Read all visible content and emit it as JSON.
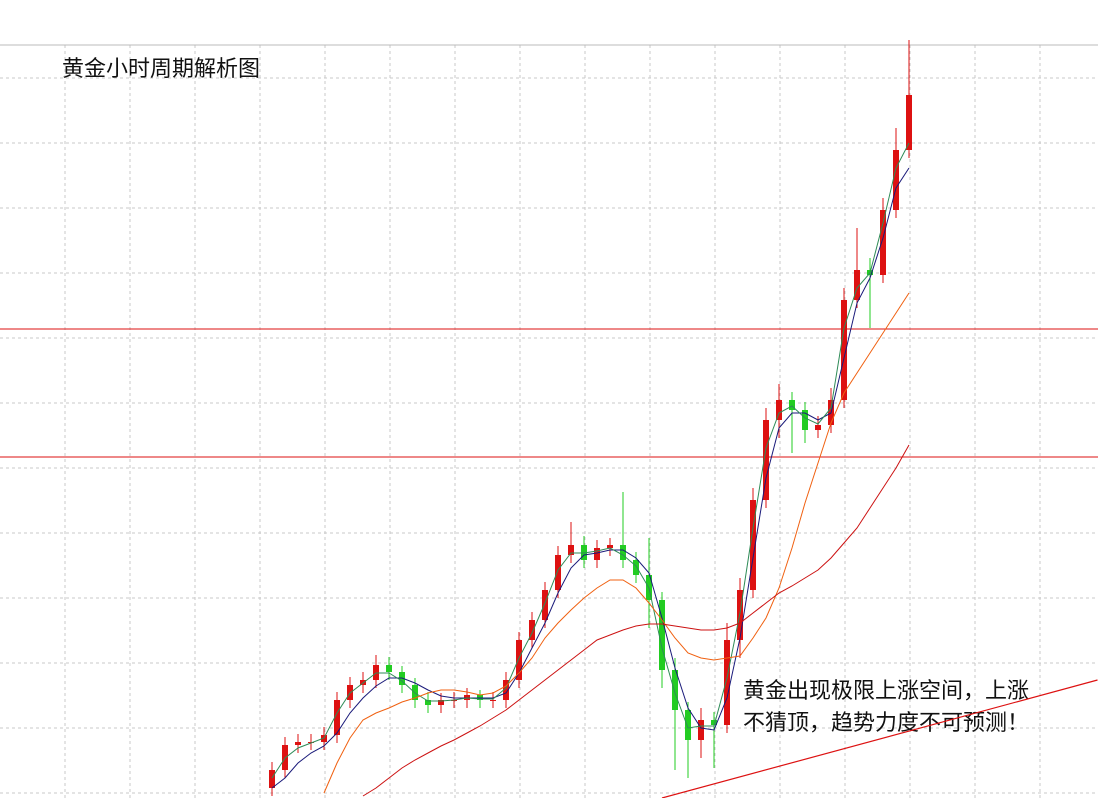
{
  "chart_data": {
    "type": "candlestick",
    "title": "黄金小时周期解析图",
    "annotation": [
      "黄金出现极限上涨空间，上涨",
      "不猜顶，趋势力度不可预测！"
    ],
    "ylim": [
      0,
      798
    ],
    "grid": true,
    "up_color": "#dd1111",
    "down_color": "#22cc22",
    "open": [
      10,
      28,
      53,
      56,
      56,
      63,
      98,
      113,
      118,
      133,
      126,
      113,
      98,
      93,
      98,
      98,
      103,
      98,
      98,
      118,
      158,
      178,
      208,
      243,
      253,
      238,
      250,
      253,
      238,
      223,
      198,
      128,
      88,
      58,
      78,
      73,
      158,
      208,
      298,
      378,
      398,
      388,
      368,
      373,
      398,
      498,
      528,
      523,
      588,
      648
    ],
    "high": [
      36,
      61,
      64,
      64,
      71,
      106,
      121,
      126,
      143,
      141,
      132,
      120,
      106,
      105,
      106,
      110,
      108,
      106,
      126,
      166,
      186,
      216,
      252,
      276,
      262,
      258,
      260,
      306,
      246,
      260,
      206,
      140,
      96,
      90,
      86,
      175,
      220,
      310,
      390,
      414,
      406,
      396,
      382,
      410,
      510,
      570,
      540,
      600,
      670,
      758
    ],
    "low": [
      2,
      20,
      45,
      48,
      48,
      55,
      90,
      105,
      110,
      118,
      105,
      90,
      85,
      85,
      90,
      90,
      90,
      90,
      90,
      110,
      150,
      170,
      200,
      235,
      230,
      230,
      242,
      230,
      215,
      170,
      110,
      28,
      20,
      40,
      30,
      65,
      140,
      200,
      290,
      360,
      345,
      355,
      360,
      365,
      390,
      490,
      470,
      515,
      580,
      640
    ],
    "close": [
      28,
      53,
      56,
      56,
      63,
      98,
      113,
      118,
      133,
      126,
      113,
      98,
      93,
      98,
      98,
      103,
      98,
      98,
      118,
      158,
      178,
      208,
      243,
      253,
      238,
      250,
      253,
      238,
      223,
      198,
      128,
      88,
      58,
      78,
      73,
      158,
      208,
      298,
      378,
      398,
      388,
      368,
      373,
      398,
      498,
      528,
      523,
      588,
      648,
      703
    ],
    "series": [
      {
        "color": "#1a1a7a",
        "values": [
          10,
          20,
          35,
          45,
          52,
          65,
          85,
          100,
          112,
          120,
          120,
          115,
          108,
          102,
          100,
          100,
          100,
          100,
          105,
          125,
          150,
          175,
          205,
          230,
          243,
          245,
          248,
          248,
          240,
          225,
          180,
          130,
          90,
          70,
          68,
          100,
          160,
          240,
          320,
          370,
          385,
          385,
          378,
          385,
          440,
          495,
          520,
          560,
          610,
          630
        ]
      },
      {
        "color": "#2e8b57",
        "values": [
          20,
          40,
          50,
          55,
          60,
          85,
          105,
          115,
          125,
          125,
          117,
          105,
          97,
          97,
          98,
          100,
          99,
          99,
          110,
          140,
          165,
          195,
          228,
          245,
          245,
          247,
          250,
          243,
          232,
          210,
          150,
          105,
          70,
          72,
          72,
          120,
          185,
          270,
          350,
          385,
          392,
          380,
          374,
          390,
          470,
          510,
          525,
          575,
          630,
          655
        ]
      },
      {
        "color": "#f06010",
        "values": [
          null,
          null,
          null,
          null,
          5,
          35,
          60,
          78,
          85,
          90,
          96,
          100,
          105,
          108,
          108,
          106,
          103,
          105,
          112,
          125,
          140,
          160,
          175,
          188,
          200,
          210,
          218,
          218,
          210,
          195,
          178,
          160,
          145,
          140,
          138,
          140,
          142,
          160,
          180,
          210,
          250,
          295,
          335,
          375,
          405,
          425,
          445,
          465,
          485,
          505
        ]
      },
      {
        "color": "#cc1111",
        "values": [
          null,
          null,
          null,
          null,
          null,
          null,
          null,
          2,
          10,
          20,
          30,
          38,
          45,
          52,
          58,
          65,
          72,
          80,
          88,
          98,
          108,
          118,
          128,
          138,
          148,
          158,
          163,
          168,
          172,
          174,
          174,
          172,
          170,
          168,
          168,
          170,
          175,
          185,
          195,
          205,
          212,
          220,
          228,
          240,
          255,
          270,
          290,
          310,
          330,
          353
        ]
      }
    ],
    "hlines": {
      "color": "#dd1111",
      "values": [
        469,
        341
      ]
    },
    "trendline": {
      "color": "#dd1111",
      "x": [
        30,
        63.5
      ],
      "values": [
        0,
        118
      ]
    }
  }
}
